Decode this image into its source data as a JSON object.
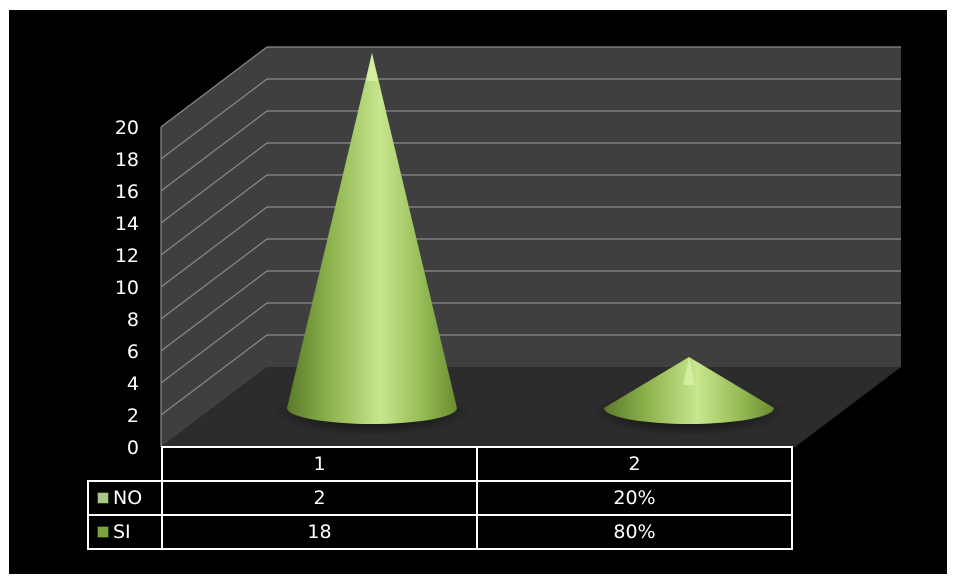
{
  "colors": {
    "background": "#000000",
    "wall": "#3f3f3f",
    "floor": "#2c2c2c",
    "gridline": "#8a8a8a",
    "cone": "#9cc25a",
    "cone_light": "#d6f0a0",
    "cone_dark": "#5a7a2a",
    "legend_no": "#a7c88a",
    "legend_si": "#7aa23e"
  },
  "chart_data": {
    "type": "bar",
    "subtype": "3d-cone",
    "title": "",
    "xlabel": "",
    "ylabel": "",
    "categories": [
      "1",
      "2"
    ],
    "ylim": [
      0,
      20
    ],
    "y_ticks": [
      "0",
      "2",
      "4",
      "6",
      "8",
      "10",
      "12",
      "14",
      "16",
      "18",
      "20"
    ],
    "grid": true,
    "legend": "in data table",
    "series": [
      {
        "name": "NO",
        "values": [
          2,
          0.2
        ],
        "table_values": [
          "2",
          "20%"
        ],
        "legend_icon": "legend-square-icon"
      },
      {
        "name": "SI",
        "values": [
          18,
          0.8
        ],
        "table_values": [
          "18",
          "80%"
        ],
        "legend_icon": "legend-square-icon"
      }
    ]
  }
}
